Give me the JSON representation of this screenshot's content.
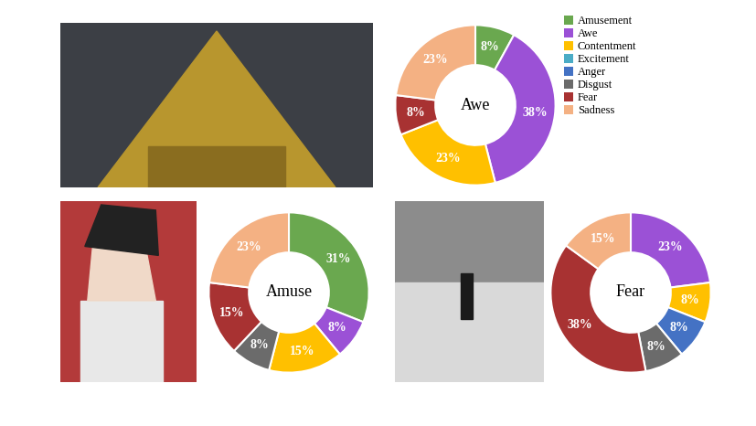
{
  "chart_data": [
    {
      "type": "pie",
      "title": "Awe",
      "categories": [
        "Amusement",
        "Awe",
        "Contentment",
        "Fear",
        "Sadness"
      ],
      "values": [
        8,
        38,
        23,
        8,
        23
      ],
      "value_labels": [
        "8%",
        "38%",
        "23%",
        "8%",
        "23%"
      ],
      "colors": [
        "#6aa84f",
        "#9b51d6",
        "#ffc000",
        "#a83232",
        "#f4b183"
      ],
      "data_labels": true
    },
    {
      "type": "pie",
      "title": "Amuse",
      "categories": [
        "Amusement",
        "Awe",
        "Contentment",
        "Disgust",
        "Fear",
        "Sadness"
      ],
      "values": [
        31,
        8,
        15,
        8,
        15,
        23
      ],
      "value_labels": [
        "31%",
        "8%",
        "15%",
        "8%",
        "15%",
        "23%"
      ],
      "colors": [
        "#6aa84f",
        "#9b51d6",
        "#ffc000",
        "#6b6b6b",
        "#a83232",
        "#f4b183"
      ],
      "data_labels": true
    },
    {
      "type": "pie",
      "title": "Fear",
      "categories": [
        "Awe",
        "Contentment",
        "Anger",
        "Disgust",
        "Fear",
        "Sadness"
      ],
      "values": [
        23,
        8,
        8,
        8,
        38,
        15
      ],
      "value_labels": [
        "23%",
        "8%",
        "8%",
        "8%",
        "38%",
        "15%"
      ],
      "colors": [
        "#9b51d6",
        "#ffc000",
        "#4472c4",
        "#6b6b6b",
        "#a83232",
        "#f4b183"
      ],
      "data_labels": true
    }
  ],
  "legend_items": [
    {
      "name": "Amusement",
      "color": "#6aa84f"
    },
    {
      "name": "Awe",
      "color": "#9b51d6"
    },
    {
      "name": "Contentment",
      "color": "#ffc000"
    },
    {
      "name": "Excitement",
      "color": "#4bacc6"
    },
    {
      "name": "Anger",
      "color": "#4472c4"
    },
    {
      "name": "Disgust",
      "color": "#6b6b6b"
    },
    {
      "name": "Fear",
      "color": "#a83232"
    },
    {
      "name": "Sadness",
      "color": "#f4b183"
    }
  ]
}
